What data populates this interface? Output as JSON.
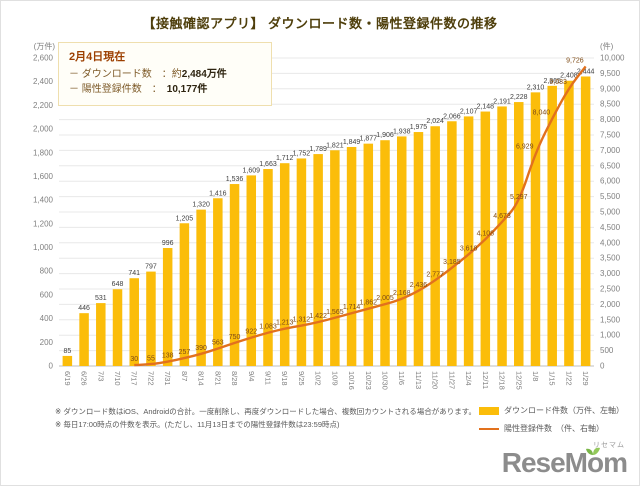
{
  "title": "【接触確認アプリ】 ダウンロード数・陽性登録件数の推移",
  "info_box": {
    "heading": "2月4日現在",
    "rows": [
      {
        "label": "－ ダウンロード数",
        "colon": "：",
        "prefix": "約",
        "value": "2,484",
        "unit": "万件"
      },
      {
        "label": "－ 陽性登録件数",
        "colon": "：",
        "prefix": "",
        "value": "10,177",
        "unit": "件"
      }
    ]
  },
  "chart_data": {
    "type": "bar",
    "categories": [
      "6/19",
      "6/26",
      "7/3",
      "7/10",
      "7/17",
      "7/22",
      "7/31",
      "8/7",
      "8/14",
      "8/21",
      "8/28",
      "9/4",
      "9/11",
      "9/18",
      "9/25",
      "10/2",
      "10/9",
      "10/16",
      "10/23",
      "10/30",
      "11/6",
      "11/13",
      "11/20",
      "11/27",
      "12/4",
      "12/11",
      "12/18",
      "12/25",
      "1/8",
      "1/15",
      "1/22",
      "1/29"
    ],
    "series": [
      {
        "name": "ダウンロード件数（万件、左軸）",
        "type": "bar",
        "axis": "left",
        "color": "#fbbd0a",
        "values": [
          85,
          446,
          531,
          648,
          741,
          797,
          996,
          1205,
          1320,
          1416,
          1536,
          1609,
          1663,
          1712,
          1752,
          1789,
          1821,
          1849,
          1877,
          1906,
          1938,
          1975,
          2024,
          2066,
          2107,
          2148,
          2191,
          2228,
          2310,
          2365,
          2408,
          2444
        ]
      },
      {
        "name": "陽性登録件数　（件、右軸）",
        "type": "line",
        "axis": "right",
        "color": "#e2711d",
        "start_index": 4,
        "values": [
          30,
          55,
          138,
          257,
          390,
          563,
          750,
          922,
          1083,
          1213,
          1312,
          1422,
          1565,
          1714,
          1862,
          2005,
          2168,
          2436,
          2777,
          3185,
          3618,
          4108,
          4673,
          5297,
          6929,
          8040,
          9033,
          9726
        ]
      }
    ],
    "left_axis": {
      "label": "(万件)",
      "min": 0,
      "max": 2600,
      "step": 200
    },
    "right_axis": {
      "label": "(件)",
      "min": 0,
      "max": 10000,
      "step": 500
    },
    "grid": true,
    "legend_position": "bottom-right"
  },
  "footnotes": [
    "※ ダウンロード数はiOS、Androidの合計。一度削除し、再度ダウンロードした場合、複数回カウントされる場合があります。",
    "※ 毎日17:00時点の件数を表示。(ただし、11月13日までの陽性登録件数は23:59時点)"
  ],
  "logo": {
    "text": "ReseMom",
    "kana": "リセマム"
  },
  "colors": {
    "bar": "#fbbd0a",
    "line": "#e2711d",
    "grid": "#e8e8e8",
    "axis": "#bfbfbf",
    "tick_text": "#808080",
    "bar_label": "#404040",
    "line_label": "#7e4a14"
  }
}
